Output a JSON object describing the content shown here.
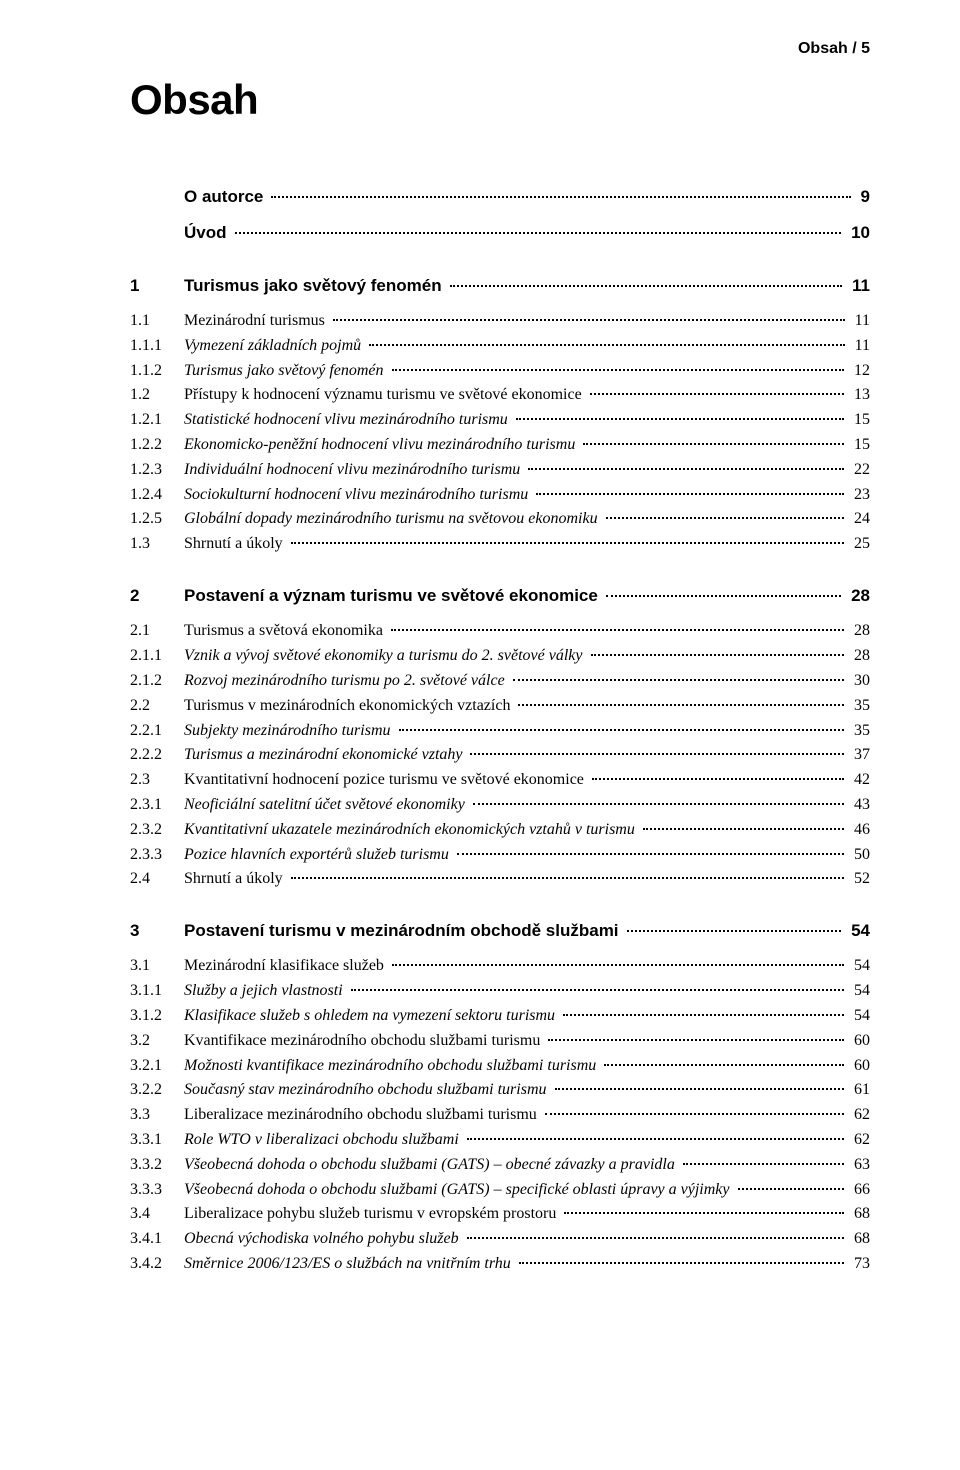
{
  "running_head": "Obsah  /  5",
  "title": "Obsah",
  "entries": [
    {
      "num": "",
      "label": "O autorce",
      "page": "9",
      "bold_sans": true,
      "italic": false,
      "gap_before": 0
    },
    {
      "num": "",
      "label": "Úvod",
      "page": "10",
      "bold_sans": true,
      "italic": false,
      "gap_before": 10
    },
    {
      "num": "1",
      "label": "Turismus jako světový fenomén",
      "page": "11",
      "bold_sans": true,
      "italic": false,
      "gap_before": 26
    },
    {
      "num": "1.1",
      "label": "Mezinárodní turismus",
      "page": "11",
      "bold_sans": false,
      "italic": false,
      "gap_before": 10
    },
    {
      "num": "1.1.1",
      "label": "Vymezení základních pojmů",
      "page": "11",
      "bold_sans": false,
      "italic": true,
      "gap_before": 0
    },
    {
      "num": "1.1.2",
      "label": "Turismus jako světový fenomén",
      "page": "12",
      "bold_sans": false,
      "italic": true,
      "gap_before": 0
    },
    {
      "num": "1.2",
      "label": "Přístupy k hodnocení významu turismu ve světové ekonomice",
      "page": "13",
      "bold_sans": false,
      "italic": false,
      "gap_before": 0
    },
    {
      "num": "1.2.1",
      "label": "Statistické hodnocení vlivu mezinárodního turismu",
      "page": "15",
      "bold_sans": false,
      "italic": true,
      "gap_before": 0
    },
    {
      "num": "1.2.2",
      "label": "Ekonomicko-peněžní hodnocení vlivu mezinárodního turismu",
      "page": "15",
      "bold_sans": false,
      "italic": true,
      "gap_before": 0
    },
    {
      "num": "1.2.3",
      "label": "Individuální hodnocení vlivu mezinárodního turismu",
      "page": "22",
      "bold_sans": false,
      "italic": true,
      "gap_before": 0
    },
    {
      "num": "1.2.4",
      "label": "Sociokulturní hodnocení vlivu mezinárodního turismu",
      "page": "23",
      "bold_sans": false,
      "italic": true,
      "gap_before": 0
    },
    {
      "num": "1.2.5",
      "label": "Globální dopady mezinárodního turismu na světovou ekonomiku",
      "page": "24",
      "bold_sans": false,
      "italic": true,
      "gap_before": 0
    },
    {
      "num": "1.3",
      "label": "Shrnutí a úkoly",
      "page": "25",
      "bold_sans": false,
      "italic": false,
      "gap_before": 0
    },
    {
      "num": "2",
      "label": "Postavení a význam turismu ve světové ekonomice",
      "page": "28",
      "bold_sans": true,
      "italic": false,
      "gap_before": 26
    },
    {
      "num": "2.1",
      "label": "Turismus a světová ekonomika",
      "page": "28",
      "bold_sans": false,
      "italic": false,
      "gap_before": 10
    },
    {
      "num": "2.1.1",
      "label": "Vznik a vývoj světové ekonomiky a turismu do 2. světové války",
      "page": "28",
      "bold_sans": false,
      "italic": true,
      "gap_before": 0
    },
    {
      "num": "2.1.2",
      "label": "Rozvoj mezinárodního turismu po 2. světové válce",
      "page": "30",
      "bold_sans": false,
      "italic": true,
      "gap_before": 0
    },
    {
      "num": "2.2",
      "label": "Turismus v mezinárodních ekonomických vztazích",
      "page": "35",
      "bold_sans": false,
      "italic": false,
      "gap_before": 0
    },
    {
      "num": "2.2.1",
      "label": "Subjekty mezinárodního turismu",
      "page": "35",
      "bold_sans": false,
      "italic": true,
      "gap_before": 0
    },
    {
      "num": "2.2.2",
      "label": "Turismus a mezinárodní ekonomické vztahy",
      "page": "37",
      "bold_sans": false,
      "italic": true,
      "gap_before": 0
    },
    {
      "num": "2.3",
      "label": "Kvantitativní hodnocení pozice turismu ve světové ekonomice",
      "page": "42",
      "bold_sans": false,
      "italic": false,
      "gap_before": 0
    },
    {
      "num": "2.3.1",
      "label": "Neoficiální satelitní účet světové ekonomiky",
      "page": "43",
      "bold_sans": false,
      "italic": true,
      "gap_before": 0
    },
    {
      "num": "2.3.2",
      "label": "Kvantitativní ukazatele mezinárodních ekonomických vztahů v turismu",
      "page": "46",
      "bold_sans": false,
      "italic": true,
      "gap_before": 0
    },
    {
      "num": "2.3.3",
      "label": "Pozice hlavních exportérů služeb turismu",
      "page": "50",
      "bold_sans": false,
      "italic": true,
      "gap_before": 0
    },
    {
      "num": "2.4",
      "label": "Shrnutí a úkoly",
      "page": "52",
      "bold_sans": false,
      "italic": false,
      "gap_before": 0
    },
    {
      "num": "3",
      "label": "Postavení turismu v mezinárodním obchodě službami",
      "page": "54",
      "bold_sans": true,
      "italic": false,
      "gap_before": 26
    },
    {
      "num": "3.1",
      "label": "Mezinárodní klasifikace služeb",
      "page": "54",
      "bold_sans": false,
      "italic": false,
      "gap_before": 10
    },
    {
      "num": "3.1.1",
      "label": "Služby a jejich vlastnosti",
      "page": "54",
      "bold_sans": false,
      "italic": true,
      "gap_before": 0
    },
    {
      "num": "3.1.2",
      "label": "Klasifikace služeb s ohledem na vymezení sektoru turismu",
      "page": "54",
      "bold_sans": false,
      "italic": true,
      "gap_before": 0
    },
    {
      "num": "3.2",
      "label": "Kvantifikace mezinárodního obchodu službami turismu",
      "page": "60",
      "bold_sans": false,
      "italic": false,
      "gap_before": 0
    },
    {
      "num": "3.2.1",
      "label": "Možnosti kvantifikace mezinárodního obchodu službami turismu",
      "page": "60",
      "bold_sans": false,
      "italic": true,
      "gap_before": 0
    },
    {
      "num": "3.2.2",
      "label": "Současný stav mezinárodního obchodu službami turismu",
      "page": "61",
      "bold_sans": false,
      "italic": true,
      "gap_before": 0
    },
    {
      "num": "3.3",
      "label": "Liberalizace mezinárodního obchodu službami turismu",
      "page": "62",
      "bold_sans": false,
      "italic": false,
      "gap_before": 0
    },
    {
      "num": "3.3.1",
      "label": "Role WTO v liberalizaci obchodu službami",
      "page": "62",
      "bold_sans": false,
      "italic": true,
      "gap_before": 0
    },
    {
      "num": "3.3.2",
      "label": "Všeobecná dohoda o obchodu službami (GATS) – obecné závazky a pravidla",
      "page": "63",
      "bold_sans": false,
      "italic": true,
      "gap_before": 0
    },
    {
      "num": "3.3.3",
      "label": "Všeobecná dohoda o obchodu službami (GATS) – specifické oblasti úpravy a výjimky",
      "page": "66",
      "bold_sans": false,
      "italic": true,
      "gap_before": 0
    },
    {
      "num": "3.4",
      "label": "Liberalizace pohybu služeb turismu v evropském prostoru",
      "page": "68",
      "bold_sans": false,
      "italic": false,
      "gap_before": 0
    },
    {
      "num": "3.4.1",
      "label": "Obecná východiska volného pohybu služeb",
      "page": "68",
      "bold_sans": false,
      "italic": true,
      "gap_before": 0
    },
    {
      "num": "3.4.2",
      "label": "Směrnice 2006/123/ES o službách na vnitřním trhu",
      "page": "73",
      "bold_sans": false,
      "italic": true,
      "gap_before": 0
    }
  ]
}
